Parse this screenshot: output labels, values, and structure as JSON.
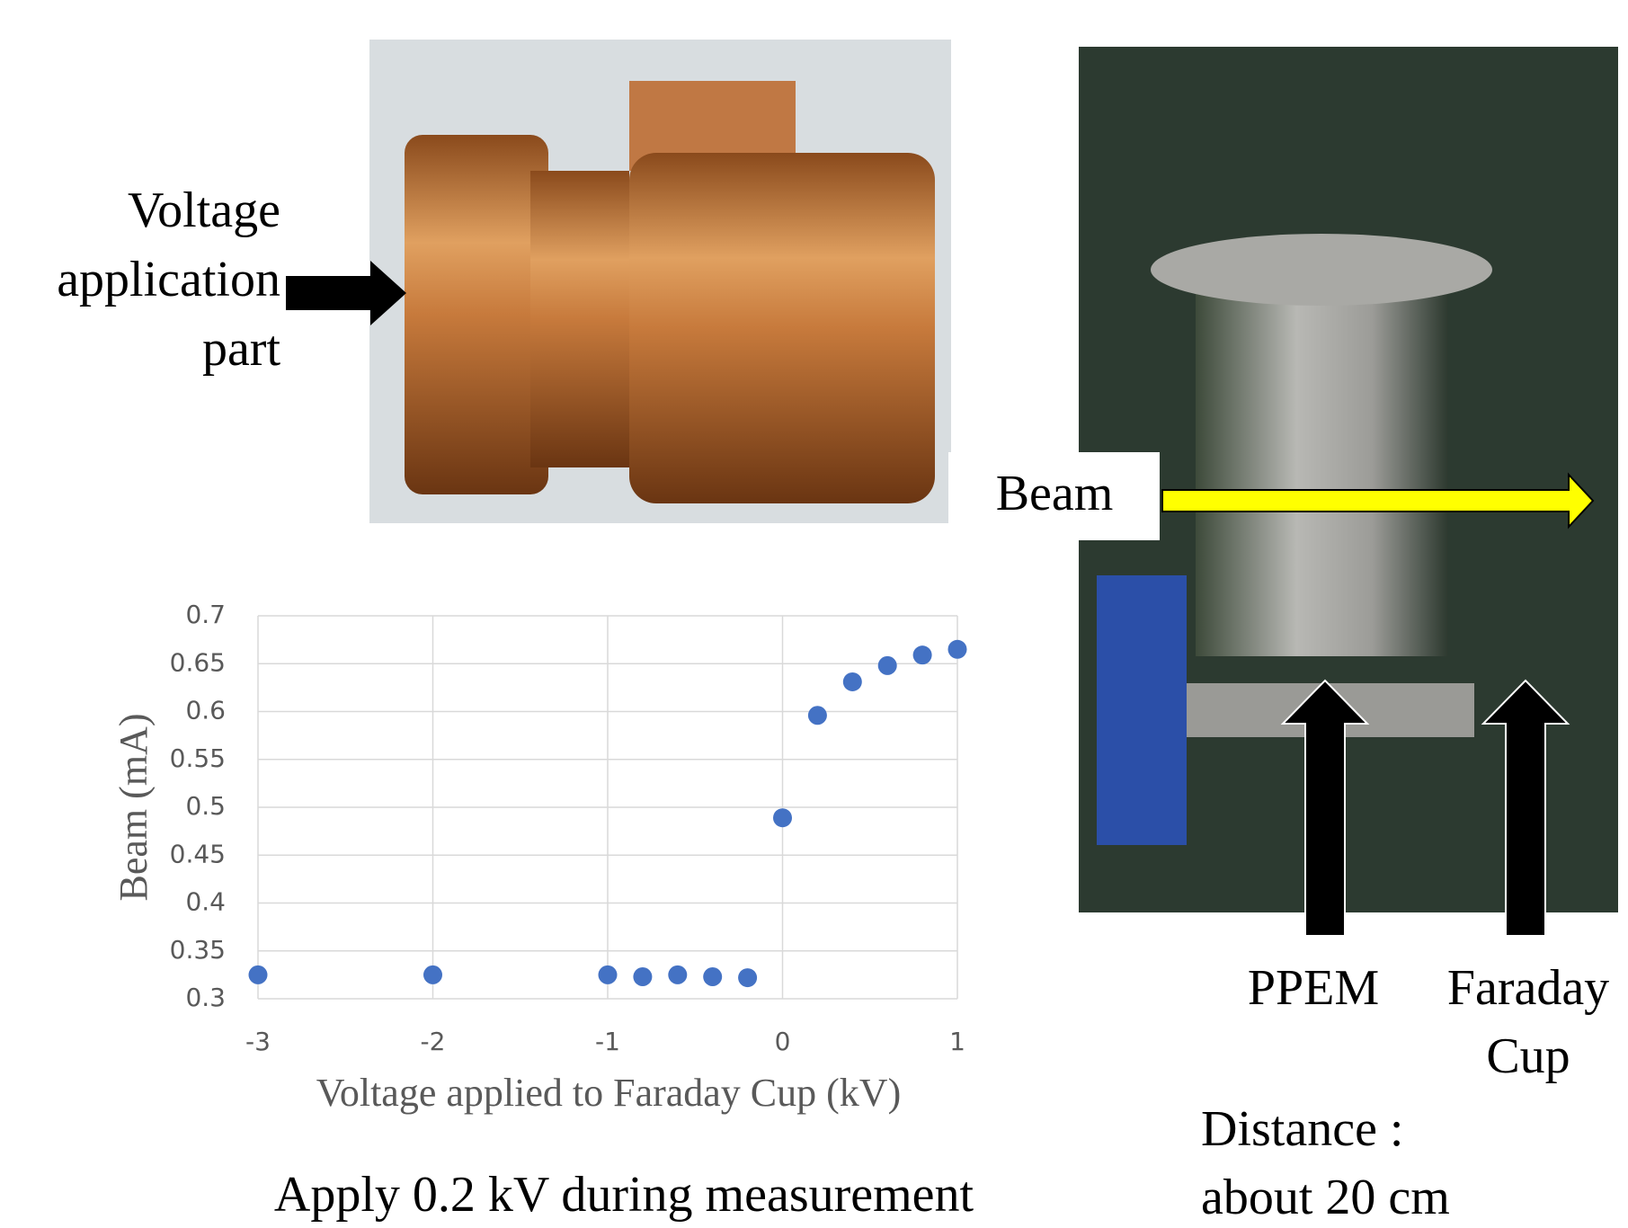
{
  "chart_data": {
    "type": "scatter",
    "xlabel": "Voltage applied to Faraday Cup (kV)",
    "ylabel": "Beam (mA)",
    "x": [
      -3,
      -2,
      -1,
      -0.8,
      -0.6,
      -0.4,
      -0.2,
      0,
      0.2,
      0.4,
      0.6,
      0.8,
      1
    ],
    "values": [
      0.325,
      0.325,
      0.325,
      0.323,
      0.325,
      0.323,
      0.322,
      0.489,
      0.596,
      0.631,
      0.648,
      0.659,
      0.665
    ],
    "color": "#4472c4",
    "xlim": [
      -3,
      1
    ],
    "xticks": [
      -3,
      -2,
      -1,
      0,
      1
    ],
    "ylim": [
      0.3,
      0.7
    ],
    "yticks": [
      0.3,
      0.35,
      0.4,
      0.45,
      0.5,
      0.55,
      0.6,
      0.65,
      0.7
    ],
    "grid": true
  },
  "annotations": {
    "voltage_part": [
      "Voltage",
      "application",
      "part"
    ],
    "beam": "Beam",
    "ppem": "PPEM",
    "faraday_cup": [
      "Faraday",
      "Cup"
    ],
    "distance": [
      "Distance :",
      "about 20 cm"
    ],
    "caption": "Apply 0.2 kV during measurement"
  }
}
